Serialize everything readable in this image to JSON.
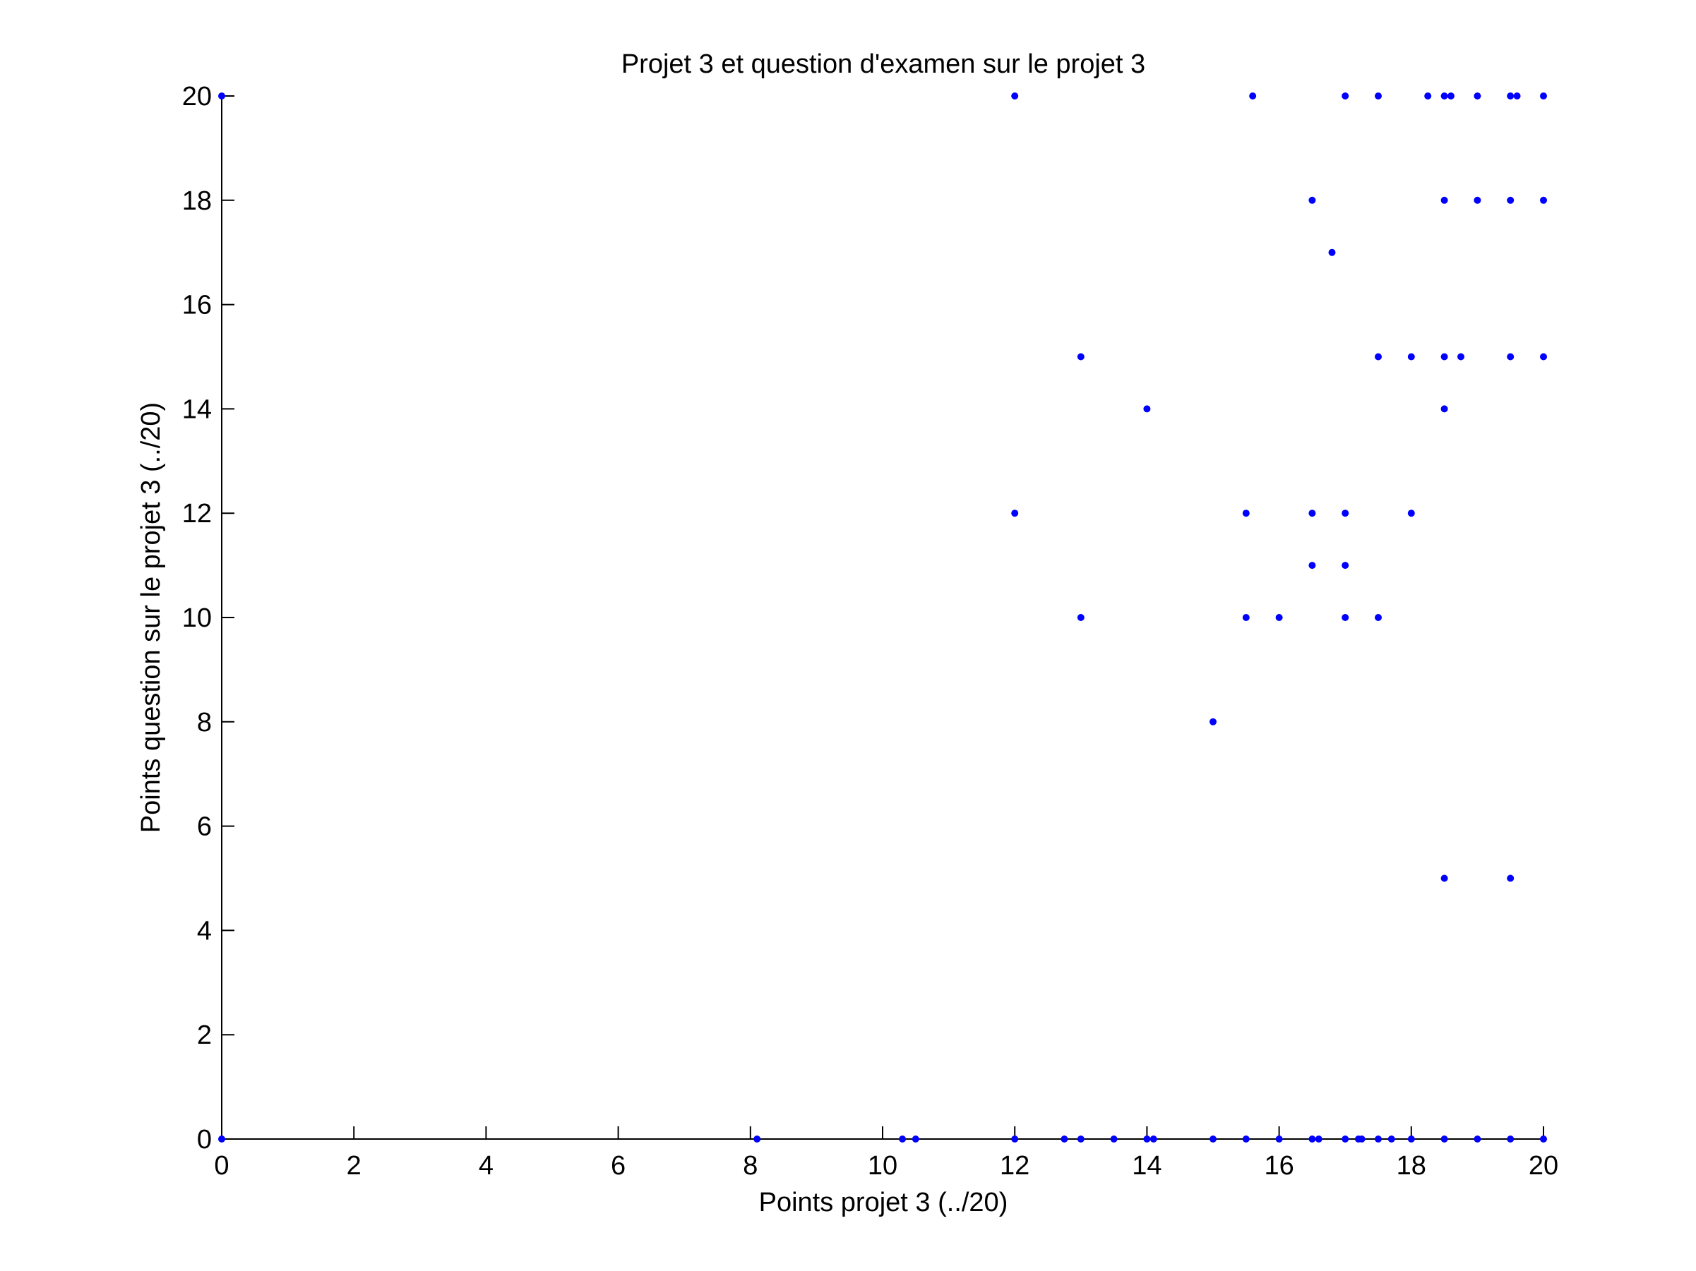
{
  "chart_data": {
    "type": "scatter",
    "title": "Projet 3 et question d'examen sur le projet 3",
    "xlabel": "Points projet 3 (../20)",
    "ylabel": "Points question sur le projet 3 (../20)",
    "xlim": [
      0,
      20
    ],
    "ylim": [
      0,
      20
    ],
    "xticks": [
      0,
      2,
      4,
      6,
      8,
      10,
      12,
      14,
      16,
      18,
      20
    ],
    "yticks": [
      0,
      2,
      4,
      6,
      8,
      10,
      12,
      14,
      16,
      18,
      20
    ],
    "grid": false,
    "marker_color": "#0000ff",
    "points": [
      [
        0,
        20
      ],
      [
        12,
        20
      ],
      [
        15.6,
        20
      ],
      [
        17,
        20
      ],
      [
        17.5,
        20
      ],
      [
        18.25,
        20
      ],
      [
        18.5,
        20
      ],
      [
        18.6,
        20
      ],
      [
        19,
        20
      ],
      [
        19.5,
        20
      ],
      [
        19.6,
        20
      ],
      [
        20,
        20
      ],
      [
        16.5,
        18
      ],
      [
        18.5,
        18
      ],
      [
        19,
        18
      ],
      [
        19.5,
        18
      ],
      [
        20,
        18
      ],
      [
        16.8,
        17
      ],
      [
        13,
        15
      ],
      [
        17.5,
        15
      ],
      [
        18,
        15
      ],
      [
        18.5,
        15
      ],
      [
        18.75,
        15
      ],
      [
        19.5,
        15
      ],
      [
        20,
        15
      ],
      [
        14,
        14
      ],
      [
        18.5,
        14
      ],
      [
        12,
        12
      ],
      [
        15.5,
        12
      ],
      [
        16.5,
        12
      ],
      [
        17,
        12
      ],
      [
        18,
        12
      ],
      [
        16.5,
        11
      ],
      [
        17,
        11
      ],
      [
        13,
        10
      ],
      [
        15.5,
        10
      ],
      [
        16,
        10
      ],
      [
        17,
        10
      ],
      [
        17.5,
        10
      ],
      [
        15,
        8
      ],
      [
        18.5,
        5
      ],
      [
        19.5,
        5
      ],
      [
        0,
        0
      ],
      [
        8.1,
        0
      ],
      [
        10.3,
        0
      ],
      [
        10.5,
        0
      ],
      [
        12,
        0
      ],
      [
        12.75,
        0
      ],
      [
        13,
        0
      ],
      [
        13.5,
        0
      ],
      [
        14,
        0
      ],
      [
        14.1,
        0
      ],
      [
        15,
        0
      ],
      [
        15.5,
        0
      ],
      [
        16,
        0
      ],
      [
        16.5,
        0
      ],
      [
        16.6,
        0
      ],
      [
        17,
        0
      ],
      [
        17.2,
        0
      ],
      [
        17.25,
        0
      ],
      [
        17.5,
        0
      ],
      [
        17.7,
        0
      ],
      [
        18,
        0
      ],
      [
        18.5,
        0
      ],
      [
        19,
        0
      ],
      [
        19.5,
        0
      ],
      [
        20,
        0
      ]
    ]
  }
}
